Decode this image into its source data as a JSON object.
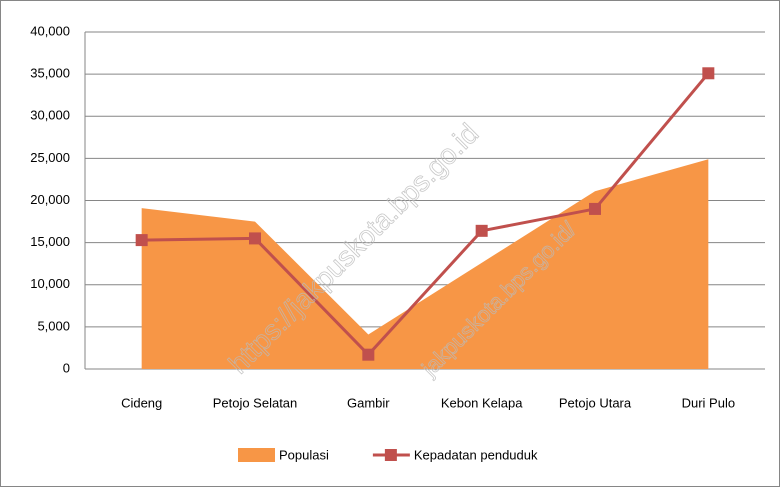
{
  "chart_data": {
    "type": "combo",
    "categories": [
      "Cideng",
      "Petojo Selatan",
      "Gambir",
      "Kebon Kelapa",
      "Petojo Utara",
      "Duri Pulo"
    ],
    "series": [
      {
        "name": "Populasi",
        "type": "area",
        "color": "#f79646",
        "values": [
          19100,
          17500,
          4100,
          12600,
          21100,
          24900
        ]
      },
      {
        "name": "Kepadatan penduduk",
        "type": "line",
        "color": "#c0504d",
        "values": [
          15300,
          15500,
          1700,
          16400,
          19000,
          35100
        ]
      }
    ],
    "ylim": [
      0,
      40000
    ],
    "yticks": [
      0,
      {
        "value": 5000,
        "label": "5,000"
      },
      {
        "value": 10000,
        "label": "10,000"
      },
      {
        "value": 15000,
        "label": "15,000"
      },
      {
        "value": 20000,
        "label": "20,000"
      },
      {
        "value": 25000,
        "label": "25,000"
      },
      {
        "value": 30000,
        "label": "30,000"
      },
      {
        "value": 35000,
        "label": "35,000"
      },
      {
        "value": 40000,
        "label": "40,000"
      }
    ],
    "grid": true,
    "legend": "bottom",
    "watermark": [
      "https://jakpuskota.bps.go.id",
      "jakpuskota.bps.go.id/"
    ]
  }
}
